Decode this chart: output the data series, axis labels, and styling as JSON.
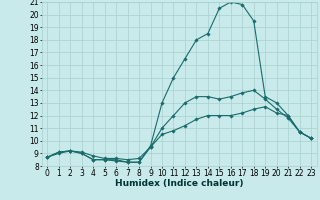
{
  "title": "",
  "xlabel": "Humidex (Indice chaleur)",
  "bg_color": "#c8eaea",
  "grid_color": "#a8d0d0",
  "line_color": "#1a6b6b",
  "xlim": [
    -0.5,
    23.5
  ],
  "ylim": [
    8,
    21
  ],
  "xticks": [
    0,
    1,
    2,
    3,
    4,
    5,
    6,
    7,
    8,
    9,
    10,
    11,
    12,
    13,
    14,
    15,
    16,
    17,
    18,
    19,
    20,
    21,
    22,
    23
  ],
  "yticks": [
    8,
    9,
    10,
    11,
    12,
    13,
    14,
    15,
    16,
    17,
    18,
    19,
    20,
    21
  ],
  "line1_x": [
    0,
    1,
    2,
    3,
    4,
    5,
    6,
    7,
    8,
    9,
    10,
    11,
    12,
    13,
    14,
    15,
    16,
    17,
    18,
    19,
    20,
    21,
    22,
    23
  ],
  "line1_y": [
    8.7,
    9.1,
    9.2,
    9.0,
    8.5,
    8.5,
    8.5,
    8.3,
    8.3,
    9.5,
    10.5,
    10.8,
    11.2,
    11.7,
    12.0,
    12.0,
    12.0,
    12.2,
    12.5,
    12.7,
    12.2,
    12.0,
    10.7,
    10.2
  ],
  "line2_x": [
    0,
    1,
    2,
    3,
    4,
    5,
    6,
    7,
    8,
    9,
    10,
    11,
    12,
    13,
    14,
    15,
    16,
    17,
    18,
    19,
    20,
    21,
    22,
    23
  ],
  "line2_y": [
    8.7,
    9.0,
    9.2,
    9.1,
    8.8,
    8.6,
    8.6,
    8.5,
    8.6,
    9.5,
    11.0,
    12.0,
    13.0,
    13.5,
    13.5,
    13.3,
    13.5,
    13.8,
    14.0,
    13.3,
    12.5,
    11.8,
    10.7,
    10.2
  ],
  "line3_x": [
    0,
    1,
    2,
    3,
    4,
    5,
    6,
    7,
    8,
    9,
    10,
    11,
    12,
    13,
    14,
    15,
    16,
    17,
    18,
    19,
    20,
    21,
    22,
    23
  ],
  "line3_y": [
    8.7,
    9.1,
    9.2,
    9.0,
    8.5,
    8.5,
    8.4,
    8.3,
    8.3,
    9.6,
    13.0,
    15.0,
    16.5,
    18.0,
    18.5,
    20.5,
    21.0,
    20.8,
    19.5,
    13.5,
    13.0,
    12.0,
    10.7,
    10.2
  ],
  "marker": "D",
  "markersize": 1.8,
  "linewidth": 0.8,
  "xlabel_fontsize": 6.5,
  "tick_fontsize": 5.5
}
